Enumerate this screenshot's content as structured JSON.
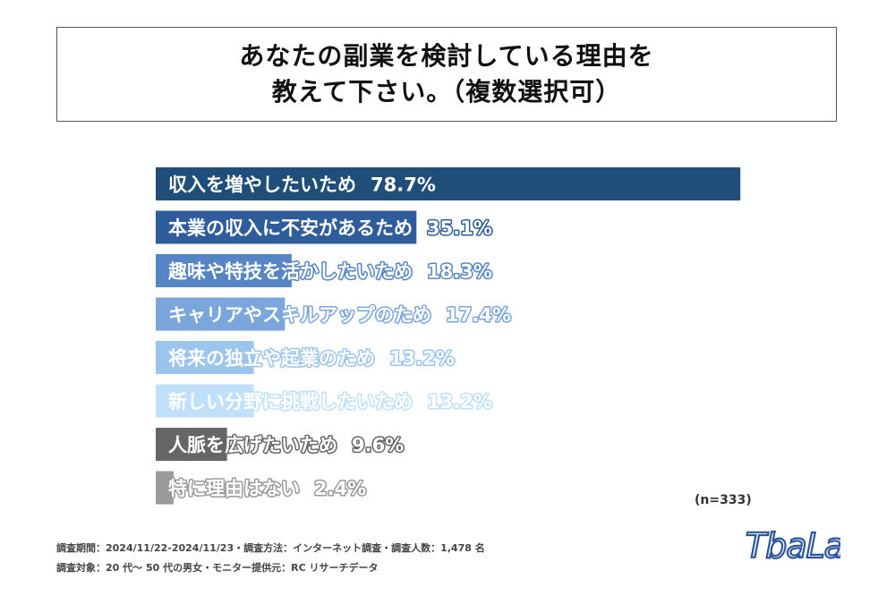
{
  "title": {
    "line1": "あなたの副業を検討している理由を",
    "line2": "教えて下さい。（複数選択可）"
  },
  "chart_data": {
    "type": "bar",
    "orientation": "horizontal",
    "categories": [
      "収入を増やしたいため",
      "本業の収入に不安があるため",
      "趣味や特技を活かしたいため",
      "キャリアやスキルアップのため",
      "将来の独立や起業のため",
      "新しい分野に挑戦したいため",
      "人脈を広げたいため",
      "特に理由はない"
    ],
    "values": [
      78.7,
      35.1,
      18.3,
      17.4,
      13.2,
      13.2,
      9.6,
      2.4
    ],
    "value_labels": [
      "78.7%",
      "35.1%",
      "18.3%",
      "17.4%",
      "13.2%",
      "13.2%",
      "9.6%",
      "2.4%"
    ],
    "colors": [
      "#1f4e79",
      "#2f5d9c",
      "#5585c5",
      "#7aa6dc",
      "#9cc5ee",
      "#bfe0f8",
      "#666666",
      "#9a9a9a"
    ],
    "xlim": [
      0,
      100
    ],
    "unit": "%"
  },
  "sample_note": "(n=333)",
  "footnotes": {
    "line1": "調査期間：2024/11/22-2024/11/23・調査方法：インターネット調査・調査人数：1,478 名",
    "line2": "調査対象：20 代～ 50 代の男女・モニター提供元：RC リサーチデータ"
  },
  "logo": {
    "text": "TbaLance",
    "color": "#2d5599"
  }
}
